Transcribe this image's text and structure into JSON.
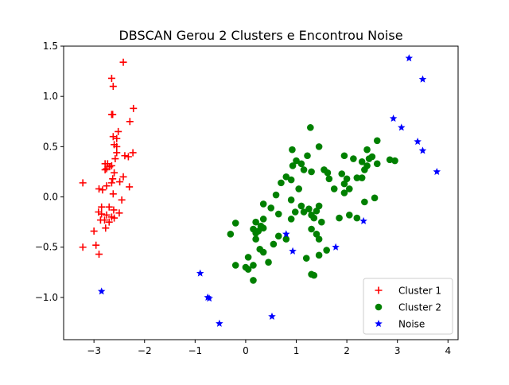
{
  "chart_data": {
    "type": "scatter",
    "title": "DBSCAN Gerou 2 Clusters e Encontrou Noise",
    "xlabel": "",
    "ylabel": "",
    "xlim": [
      -3.6,
      4.2
    ],
    "ylim": [
      -1.42,
      1.5
    ],
    "xticks": [
      -3,
      -2,
      -1,
      0,
      1,
      2,
      3,
      4
    ],
    "yticks": [
      -1.0,
      -0.5,
      0.0,
      0.5,
      1.0,
      1.5
    ],
    "xtick_labels": [
      "−3",
      "−2",
      "−1",
      "0",
      "1",
      "2",
      "3",
      "4"
    ],
    "ytick_labels": [
      "−1.0",
      "−0.5",
      "0.0",
      "0.5",
      "1.0",
      "1.5"
    ],
    "grid": false,
    "legend_position": "lower-right",
    "series": [
      {
        "name": "Cluster 1",
        "marker": "plus",
        "color": "#ff0000",
        "points": [
          [
            -2.42,
            1.34
          ],
          [
            -2.65,
            1.18
          ],
          [
            -2.62,
            1.1
          ],
          [
            -2.22,
            0.88
          ],
          [
            -2.65,
            0.82
          ],
          [
            -2.63,
            0.82
          ],
          [
            -2.29,
            0.75
          ],
          [
            -2.52,
            0.65
          ],
          [
            -2.62,
            0.6
          ],
          [
            -2.55,
            0.58
          ],
          [
            -2.6,
            0.52
          ],
          [
            -2.55,
            0.5
          ],
          [
            -2.23,
            0.44
          ],
          [
            -2.55,
            0.44
          ],
          [
            -2.39,
            0.41
          ],
          [
            -2.32,
            0.4
          ],
          [
            -2.58,
            0.38
          ],
          [
            -2.78,
            0.33
          ],
          [
            -2.73,
            0.33
          ],
          [
            -2.65,
            0.31
          ],
          [
            -2.69,
            0.3
          ],
          [
            -2.78,
            0.27
          ],
          [
            -2.75,
            0.28
          ],
          [
            -2.6,
            0.24
          ],
          [
            -2.42,
            0.2
          ],
          [
            -2.63,
            0.18
          ],
          [
            -2.49,
            0.15
          ],
          [
            -2.65,
            0.14
          ],
          [
            -3.22,
            0.14
          ],
          [
            -2.75,
            0.11
          ],
          [
            -2.3,
            0.1
          ],
          [
            -2.9,
            0.08
          ],
          [
            -2.83,
            0.07
          ],
          [
            -2.62,
            0.03
          ],
          [
            -2.45,
            -0.03
          ],
          [
            -2.85,
            -0.1
          ],
          [
            -2.7,
            -0.1
          ],
          [
            -2.61,
            -0.13
          ],
          [
            -2.91,
            -0.15
          ],
          [
            -2.5,
            -0.16
          ],
          [
            -2.85,
            -0.17
          ],
          [
            -2.75,
            -0.18
          ],
          [
            -2.65,
            -0.2
          ],
          [
            -2.6,
            -0.21
          ],
          [
            -2.87,
            -0.23
          ],
          [
            -2.79,
            -0.23
          ],
          [
            -2.7,
            -0.25
          ],
          [
            -2.77,
            -0.31
          ],
          [
            -3.0,
            -0.34
          ],
          [
            -2.96,
            -0.48
          ],
          [
            -3.22,
            -0.5
          ],
          [
            -2.9,
            -0.57
          ]
        ]
      },
      {
        "name": "Cluster 2",
        "marker": "circle",
        "color": "#008000",
        "points": [
          [
            1.28,
            0.69
          ],
          [
            2.6,
            0.56
          ],
          [
            1.45,
            0.5
          ],
          [
            0.92,
            0.47
          ],
          [
            2.4,
            0.47
          ],
          [
            1.22,
            0.41
          ],
          [
            1.95,
            0.41
          ],
          [
            2.5,
            0.4
          ],
          [
            2.13,
            0.38
          ],
          [
            2.44,
            0.38
          ],
          [
            1.0,
            0.36
          ],
          [
            2.3,
            0.35
          ],
          [
            2.85,
            0.37
          ],
          [
            2.95,
            0.36
          ],
          [
            1.1,
            0.33
          ],
          [
            2.6,
            0.33
          ],
          [
            0.93,
            0.31
          ],
          [
            2.4,
            0.31
          ],
          [
            1.15,
            0.27
          ],
          [
            2.35,
            0.27
          ],
          [
            1.55,
            0.27
          ],
          [
            1.62,
            0.24
          ],
          [
            1.3,
            0.25
          ],
          [
            1.9,
            0.23
          ],
          [
            0.8,
            0.2
          ],
          [
            2.2,
            0.19
          ],
          [
            1.65,
            0.18
          ],
          [
            2.0,
            0.18
          ],
          [
            0.9,
            0.17
          ],
          [
            2.3,
            0.19
          ],
          [
            0.7,
            0.14
          ],
          [
            1.95,
            0.13
          ],
          [
            1.75,
            0.08
          ],
          [
            1.05,
            0.08
          ],
          [
            2.05,
            0.08
          ],
          [
            1.95,
            0.04
          ],
          [
            0.6,
            0.02
          ],
          [
            2.55,
            -0.01
          ],
          [
            0.9,
            -0.03
          ],
          [
            2.35,
            -0.05
          ],
          [
            0.35,
            -0.07
          ],
          [
            1.1,
            -0.09
          ],
          [
            1.45,
            -0.09
          ],
          [
            1.25,
            -0.12
          ],
          [
            0.5,
            -0.11
          ],
          [
            1.4,
            -0.14
          ],
          [
            1.15,
            -0.15
          ],
          [
            0.98,
            -0.15
          ],
          [
            1.3,
            -0.18
          ],
          [
            0.65,
            -0.17
          ],
          [
            2.05,
            -0.18
          ],
          [
            1.35,
            -0.21
          ],
          [
            2.2,
            -0.21
          ],
          [
            1.85,
            -0.21
          ],
          [
            0.35,
            -0.22
          ],
          [
            0.9,
            -0.22
          ],
          [
            0.2,
            -0.25
          ],
          [
            -0.2,
            -0.26
          ],
          [
            1.5,
            -0.25
          ],
          [
            0.3,
            -0.29
          ],
          [
            0.35,
            -0.31
          ],
          [
            0.15,
            -0.32
          ],
          [
            1.3,
            -0.32
          ],
          [
            0.25,
            -0.34
          ],
          [
            0.2,
            -0.36
          ],
          [
            -0.3,
            -0.37
          ],
          [
            1.4,
            -0.37
          ],
          [
            0.65,
            -0.39
          ],
          [
            1.45,
            -0.42
          ],
          [
            0.2,
            -0.42
          ],
          [
            0.8,
            -0.42
          ],
          [
            0.55,
            -0.47
          ],
          [
            0.28,
            -0.52
          ],
          [
            1.6,
            -0.53
          ],
          [
            0.35,
            -0.55
          ],
          [
            1.45,
            -0.58
          ],
          [
            1.2,
            -0.61
          ],
          [
            0.05,
            -0.6
          ],
          [
            0.45,
            -0.65
          ],
          [
            -0.2,
            -0.68
          ],
          [
            0.15,
            -0.68
          ],
          [
            0.0,
            -0.7
          ],
          [
            0.05,
            -0.72
          ],
          [
            1.3,
            -0.77
          ],
          [
            1.35,
            -0.78
          ],
          [
            0.15,
            -0.83
          ]
        ]
      },
      {
        "name": "Noise",
        "marker": "star",
        "color": "#0000ff",
        "points": [
          [
            3.23,
            1.38
          ],
          [
            3.5,
            1.17
          ],
          [
            2.92,
            0.78
          ],
          [
            3.08,
            0.69
          ],
          [
            3.4,
            0.55
          ],
          [
            3.5,
            0.46
          ],
          [
            3.78,
            0.25
          ],
          [
            2.33,
            -0.24
          ],
          [
            0.8,
            -0.37
          ],
          [
            1.78,
            -0.5
          ],
          [
            0.93,
            -0.54
          ],
          [
            -0.9,
            -0.76
          ],
          [
            -2.85,
            -0.94
          ],
          [
            -0.75,
            -1.0
          ],
          [
            -0.72,
            -1.01
          ],
          [
            0.52,
            -1.19
          ],
          [
            -0.52,
            -1.26
          ]
        ]
      }
    ]
  }
}
